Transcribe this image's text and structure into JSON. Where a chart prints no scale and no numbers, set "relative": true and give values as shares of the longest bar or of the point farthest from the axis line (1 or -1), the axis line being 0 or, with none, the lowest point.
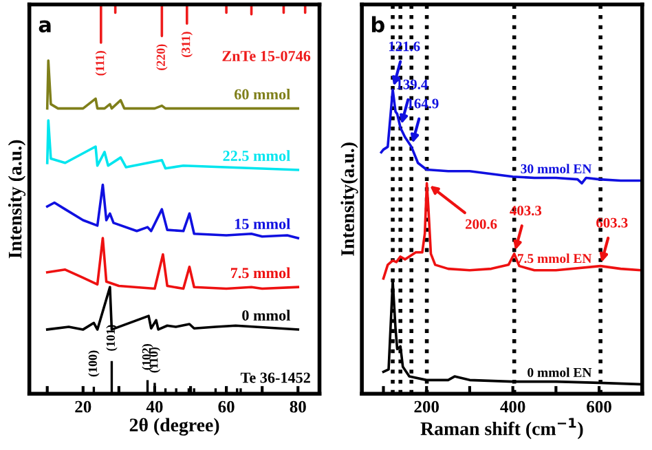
{
  "chart_data": [
    {
      "type": "line",
      "relative": true,
      "xlabel": "2θ (degree)",
      "ylabel": "Intensity (a.u.)",
      "xlim": [
        5,
        86
      ],
      "xticks": [
        {
          "value": 10,
          "label": null
        },
        20,
        {
          "value": 30,
          "label": null
        },
        40,
        {
          "value": 50,
          "label": null
        },
        60,
        {
          "value": 70,
          "label": null
        },
        80
      ],
      "annotations": [
        "a",
        {
          "text": "(111)",
          "x": 25,
          "y": 0.902
        },
        {
          "text": "(220)",
          "x": 42,
          "y": 0.919
        },
        {
          "text": "(311)",
          "x": 49,
          "y": 0.951
        },
        {
          "text": "(100)",
          "x": 23,
          "y": 0.018
        },
        {
          "text": "(101)",
          "x": 28,
          "y": 0.084
        },
        {
          "text": "(102)",
          "x": 38,
          "y": 0.035
        },
        {
          "text": "(110)",
          "x": 40,
          "y": 0.028
        }
      ],
      "series": [
        {
          "name": "ZnTe 15-0746",
          "color": "#ee1c1c",
          "x": [
            25,
            25,
            25,
            29,
            29,
            29,
            42,
            42,
            42,
            49,
            49,
            49,
            60,
            60,
            60,
            67,
            67,
            67,
            76,
            76,
            76,
            82,
            82,
            82
          ],
          "values": [
            1,
            0.902,
            1,
            1,
            0.979,
            1,
            1,
            0.919,
            1,
            1,
            0.951,
            1,
            1,
            0.979,
            1,
            1,
            0.975,
            1,
            1,
            0.979,
            1,
            1,
            0.979,
            1
          ]
        },
        {
          "name": "60 mmol",
          "color": "#7f7f1a",
          "x": [
            10,
            10.3,
            11,
            13,
            20,
            23.5,
            24,
            26,
            27.5,
            28,
            30.5,
            31.5,
            40,
            42,
            43,
            50,
            80
          ],
          "values": [
            0.733,
            0.856,
            0.744,
            0.733,
            0.733,
            0.758,
            0.733,
            0.733,
            0.744,
            0.733,
            0.754,
            0.733,
            0.733,
            0.74,
            0.733,
            0.733,
            0.733
          ]
        },
        {
          "name": "22.5 mmol",
          "color": "#00e5ee",
          "x": [
            10,
            10.3,
            11,
            15,
            23.5,
            24,
            26,
            27,
            30.5,
            32,
            42,
            43,
            48,
            80
          ],
          "values": [
            0.593,
            0.702,
            0.604,
            0.593,
            0.635,
            0.586,
            0.621,
            0.586,
            0.607,
            0.582,
            0.6,
            0.579,
            0.586,
            0.575
          ]
        },
        {
          "name": "15 mmol",
          "color": "#1010e0",
          "x": [
            10,
            12,
            15,
            20,
            24,
            25.5,
            26.5,
            27.5,
            28.5,
            35,
            38,
            39,
            42,
            43.5,
            48,
            49.7,
            51,
            60,
            67,
            70,
            77,
            80
          ],
          "values": [
            0.481,
            0.491,
            0.474,
            0.446,
            0.432,
            0.537,
            0.446,
            0.463,
            0.439,
            0.418,
            0.428,
            0.418,
            0.474,
            0.421,
            0.418,
            0.463,
            0.411,
            0.407,
            0.411,
            0.404,
            0.407,
            0.4
          ]
        },
        {
          "name": "7.5 mmol",
          "color": "#ee1111",
          "x": [
            10,
            15,
            20,
            24,
            25.5,
            26.5,
            30,
            40,
            42.3,
            43.5,
            48,
            49.7,
            51,
            60,
            67,
            70,
            80
          ],
          "values": [
            0.312,
            0.319,
            0.298,
            0.281,
            0.4,
            0.288,
            0.277,
            0.27,
            0.358,
            0.277,
            0.27,
            0.326,
            0.274,
            0.27,
            0.274,
            0.27,
            0.274
          ]
        },
        {
          "name": "0 mmol",
          "color": "#000000",
          "x": [
            10,
            16,
            20,
            23,
            24,
            27.5,
            28,
            38.3,
            39,
            40.4,
            41,
            43.5,
            45.9,
            49.7,
            51,
            57,
            62.6,
            80
          ],
          "values": [
            0.165,
            0.172,
            0.165,
            0.182,
            0.165,
            0.274,
            0.165,
            0.2,
            0.168,
            0.189,
            0.165,
            0.175,
            0.172,
            0.179,
            0.168,
            0.172,
            0.175,
            0.165
          ]
        },
        {
          "name": "Te 36-1452",
          "type": "bar",
          "color": "#000000",
          "x": [
            23,
            28,
            38,
            40,
            43,
            46,
            49.5,
            51,
            57,
            63,
            64
          ],
          "values": [
            0.018,
            0.084,
            0.035,
            0.028,
            0.014,
            0.014,
            0.014,
            0.014,
            0.014,
            0.014,
            0.014
          ]
        }
      ]
    },
    {
      "type": "line",
      "relative": true,
      "xlabel": "Raman shift (cm$^{−1}$)",
      "ylabel": "Intensity(a.u.)",
      "xlim": [
        50,
        700
      ],
      "xticks": [
        {
          "value": 100,
          "label": null
        },
        200,
        {
          "value": 300,
          "label": null
        },
        400,
        {
          "value": 500,
          "label": null
        },
        600
      ],
      "annotations": [
        "b",
        {
          "text": "121.6",
          "x": 121.6,
          "y": 1
        },
        {
          "text": "139.4",
          "x": 139.4,
          "y": 0.875
        },
        {
          "text": "164.9",
          "x": 164.9,
          "y": 0.812
        },
        {
          "text": "200.6",
          "x": 200.6,
          "y": 0.692
        },
        {
          "text": "403.3",
          "x": 403.3,
          "y": 0.46
        },
        {
          "text": "603.3",
          "x": 603.3,
          "y": 0.42
        }
      ],
      "ref_lines": [
        {
          "axis": "x",
          "value": 121.6,
          "color": "#000000",
          "line_style": "dotted"
        },
        {
          "axis": "x",
          "value": 139.4,
          "color": "#000000",
          "line_style": "dotted"
        },
        {
          "axis": "x",
          "value": 164.9,
          "color": "#000000",
          "line_style": "dotted"
        },
        {
          "axis": "x",
          "value": 200.6,
          "color": "#000000",
          "line_style": "dotted"
        },
        {
          "axis": "x",
          "value": 403.3,
          "color": "#000000",
          "line_style": "dotted"
        },
        {
          "axis": "x",
          "value": 603.3,
          "color": "#000000",
          "line_style": "dotted"
        }
      ],
      "series": [
        {
          "name": "30 mmol EN",
          "color": "#1010e0",
          "x": [
            95,
            100,
            110,
            121.6,
            128,
            132,
            139.4,
            150,
            164.9,
            180,
            200,
            250,
            300,
            350,
            400,
            450,
            500,
            550,
            560,
            570,
            600,
            650,
            700
          ],
          "values": [
            0.794,
            0.803,
            0.812,
            1,
            0.928,
            0.92,
            0.875,
            0.844,
            0.812,
            0.759,
            0.737,
            0.732,
            0.732,
            0.723,
            0.714,
            0.71,
            0.71,
            0.705,
            0.692,
            0.71,
            0.705,
            0.701,
            0.701
          ]
        },
        {
          "name": "7.5 mmol EN",
          "color": "#ee1111",
          "x": [
            100,
            110,
            121.6,
            130,
            139.4,
            150,
            175,
            190,
            196,
            200.6,
            204,
            210,
            220,
            250,
            300,
            350,
            390,
            403.3,
            415,
            450,
            500,
            603.3,
            650,
            700
          ],
          "values": [
            0.379,
            0.424,
            0.438,
            0.433,
            0.451,
            0.442,
            0.465,
            0.465,
            0.527,
            0.692,
            0.617,
            0.46,
            0.424,
            0.411,
            0.406,
            0.411,
            0.424,
            0.46,
            0.42,
            0.406,
            0.406,
            0.42,
            0.411,
            0.406
          ]
        },
        {
          "name": "0 mmol EN",
          "color": "#000000",
          "x": [
            100,
            112,
            121.6,
            128,
            132,
            139.4,
            145,
            160,
            200,
            250,
            265,
            300,
            400,
            500,
            600,
            700
          ],
          "values": [
            0.072,
            0.08,
            0.37,
            0.215,
            0.147,
            0.156,
            0.089,
            0.057,
            0.045,
            0.045,
            0.057,
            0.045,
            0.04,
            0.04,
            0.036,
            0.031
          ]
        }
      ]
    }
  ]
}
